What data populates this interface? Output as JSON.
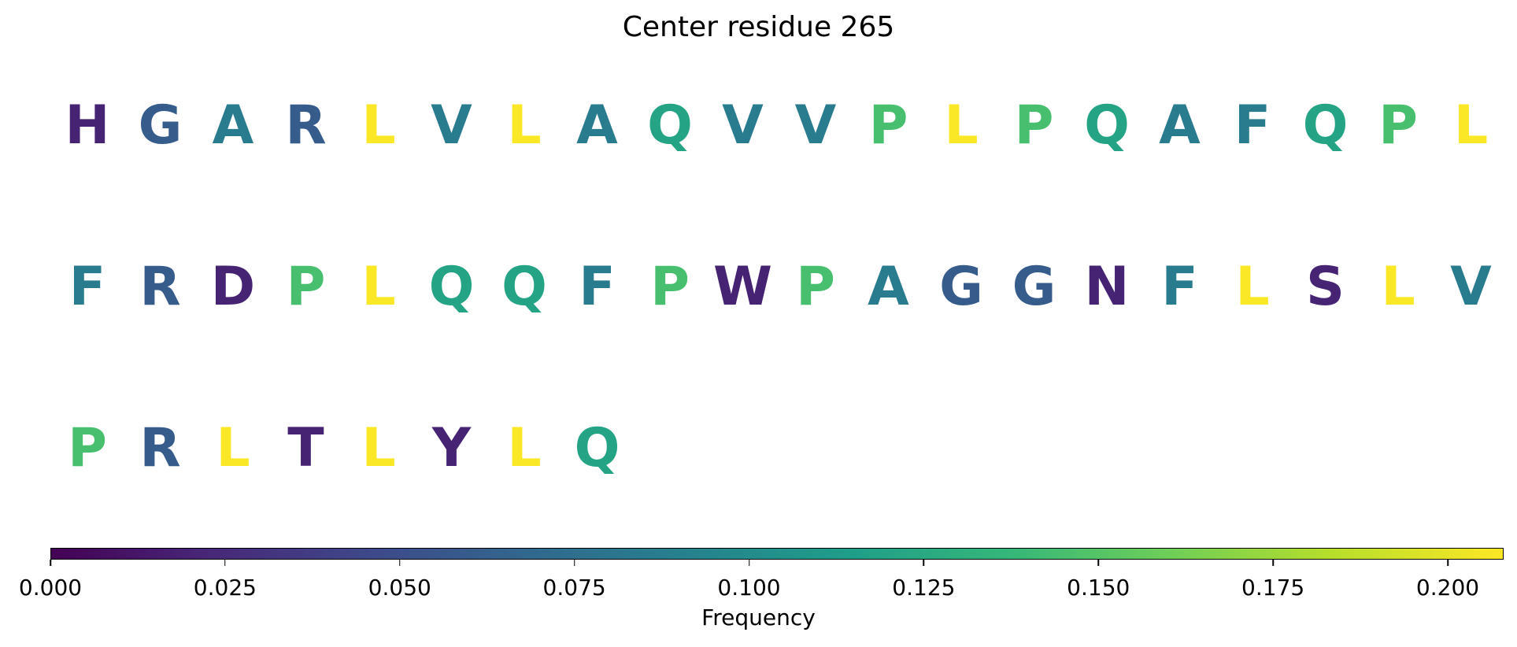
{
  "chart_data": {
    "type": "sequence-logo-text",
    "title": "Center residue 265",
    "colormap": "viridis",
    "residues_per_row": 20,
    "residues": [
      {
        "aa": "H",
        "freq": 0.02
      },
      {
        "aa": "G",
        "freq": 0.06
      },
      {
        "aa": "A",
        "freq": 0.085
      },
      {
        "aa": "R",
        "freq": 0.06
      },
      {
        "aa": "L",
        "freq": 0.207
      },
      {
        "aa": "V",
        "freq": 0.085
      },
      {
        "aa": "L",
        "freq": 0.207
      },
      {
        "aa": "A",
        "freq": 0.085
      },
      {
        "aa": "Q",
        "freq": 0.12
      },
      {
        "aa": "V",
        "freq": 0.085
      },
      {
        "aa": "V",
        "freq": 0.085
      },
      {
        "aa": "P",
        "freq": 0.145
      },
      {
        "aa": "L",
        "freq": 0.207
      },
      {
        "aa": "P",
        "freq": 0.145
      },
      {
        "aa": "Q",
        "freq": 0.12
      },
      {
        "aa": "A",
        "freq": 0.085
      },
      {
        "aa": "F",
        "freq": 0.085
      },
      {
        "aa": "Q",
        "freq": 0.12
      },
      {
        "aa": "P",
        "freq": 0.145
      },
      {
        "aa": "L",
        "freq": 0.207
      },
      {
        "aa": "F",
        "freq": 0.085
      },
      {
        "aa": "R",
        "freq": 0.06
      },
      {
        "aa": "D",
        "freq": 0.02
      },
      {
        "aa": "P",
        "freq": 0.145
      },
      {
        "aa": "L",
        "freq": 0.207
      },
      {
        "aa": "Q",
        "freq": 0.12
      },
      {
        "aa": "Q",
        "freq": 0.12
      },
      {
        "aa": "F",
        "freq": 0.085
      },
      {
        "aa": "P",
        "freq": 0.145
      },
      {
        "aa": "W",
        "freq": 0.02
      },
      {
        "aa": "P",
        "freq": 0.145
      },
      {
        "aa": "A",
        "freq": 0.085
      },
      {
        "aa": "G",
        "freq": 0.06
      },
      {
        "aa": "G",
        "freq": 0.06
      },
      {
        "aa": "N",
        "freq": 0.02
      },
      {
        "aa": "F",
        "freq": 0.085
      },
      {
        "aa": "L",
        "freq": 0.207
      },
      {
        "aa": "S",
        "freq": 0.02
      },
      {
        "aa": "L",
        "freq": 0.207
      },
      {
        "aa": "V",
        "freq": 0.085
      },
      {
        "aa": "P",
        "freq": 0.145
      },
      {
        "aa": "R",
        "freq": 0.06
      },
      {
        "aa": "L",
        "freq": 0.207
      },
      {
        "aa": "T",
        "freq": 0.02
      },
      {
        "aa": "L",
        "freq": 0.207
      },
      {
        "aa": "Y",
        "freq": 0.02
      },
      {
        "aa": "L",
        "freq": 0.207
      },
      {
        "aa": "Q",
        "freq": 0.12
      }
    ],
    "colorbar": {
      "label": "Frequency",
      "range": [
        0.0,
        0.208
      ],
      "ticks": [
        0.0,
        0.025,
        0.05,
        0.075,
        0.1,
        0.125,
        0.15,
        0.175,
        0.2
      ],
      "tick_labels": [
        "0.000",
        "0.025",
        "0.050",
        "0.075",
        "0.100",
        "0.125",
        "0.150",
        "0.175",
        "0.200"
      ],
      "orientation": "horizontal",
      "placement": "bottom"
    }
  }
}
